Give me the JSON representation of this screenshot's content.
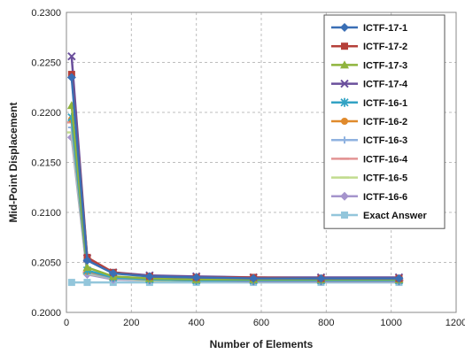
{
  "chart_data": {
    "type": "line",
    "title": "",
    "xlabel": "Number of Elements",
    "ylabel": "Mid-Point Displacement",
    "xlim": [
      0,
      1200
    ],
    "ylim": [
      0.2,
      0.23
    ],
    "xticks": [
      0,
      200,
      400,
      600,
      800,
      1000,
      1200
    ],
    "yticks": [
      0.2,
      0.205,
      0.21,
      0.215,
      0.22,
      0.225,
      0.23
    ],
    "ytick_labels": [
      "0.2000",
      "0.2050",
      "0.2100",
      "0.2150",
      "0.2200",
      "0.2250",
      "0.2300"
    ],
    "grid": true,
    "legend_position": "top-right",
    "x": [
      16,
      64,
      144,
      256,
      400,
      576,
      784,
      1024
    ],
    "series": [
      {
        "name": "ICTF-17-1",
        "color": "#3a6fb5",
        "marker": "diamond",
        "values": [
          0.2235,
          0.2052,
          0.2039,
          0.2036,
          0.2035,
          0.2034,
          0.2034,
          0.2034
        ]
      },
      {
        "name": "ICTF-17-2",
        "color": "#b5403a",
        "marker": "square",
        "values": [
          0.2238,
          0.2055,
          0.204,
          0.2036,
          0.2035,
          0.2035,
          0.2034,
          0.2034
        ]
      },
      {
        "name": "ICTF-17-3",
        "color": "#8fb43d",
        "marker": "triangle",
        "values": [
          0.2207,
          0.2045,
          0.2036,
          0.2034,
          0.2033,
          0.2033,
          0.2033,
          0.2033
        ]
      },
      {
        "name": "ICTF-17-4",
        "color": "#6a4f9c",
        "marker": "x",
        "values": [
          0.2256,
          0.2054,
          0.204,
          0.2037,
          0.2036,
          0.2035,
          0.2035,
          0.2035
        ]
      },
      {
        "name": "ICTF-16-1",
        "color": "#33a3c4",
        "marker": "star",
        "values": [
          0.2195,
          0.2042,
          0.2035,
          0.2033,
          0.2032,
          0.2032,
          0.2032,
          0.2032
        ]
      },
      {
        "name": "ICTF-16-2",
        "color": "#e08a2c",
        "marker": "circle",
        "values": [
          0.2193,
          0.2041,
          0.2035,
          0.2033,
          0.2032,
          0.2032,
          0.2032,
          0.2032
        ]
      },
      {
        "name": "ICTF-16-3",
        "color": "#8fb2e0",
        "marker": "plus",
        "values": [
          0.2185,
          0.204,
          0.2034,
          0.2033,
          0.2032,
          0.2032,
          0.2032,
          0.2032
        ]
      },
      {
        "name": "ICTF-16-4",
        "color": "#e39494",
        "marker": "dash",
        "values": [
          0.219,
          0.204,
          0.2034,
          0.2033,
          0.2032,
          0.2032,
          0.2032,
          0.2032
        ]
      },
      {
        "name": "ICTF-16-5",
        "color": "#c2dc8f",
        "marker": "dash",
        "values": [
          0.218,
          0.2039,
          0.2034,
          0.2032,
          0.2032,
          0.2032,
          0.2032,
          0.2032
        ]
      },
      {
        "name": "ICTF-16-6",
        "color": "#a594cc",
        "marker": "diamond",
        "values": [
          0.2175,
          0.2038,
          0.2033,
          0.2032,
          0.2032,
          0.2031,
          0.2031,
          0.2031
        ]
      },
      {
        "name": "Exact Answer",
        "color": "#93c6db",
        "marker": "square",
        "values": [
          0.203,
          0.203,
          0.203,
          0.203,
          0.203,
          0.203,
          0.203,
          0.203
        ]
      }
    ]
  }
}
